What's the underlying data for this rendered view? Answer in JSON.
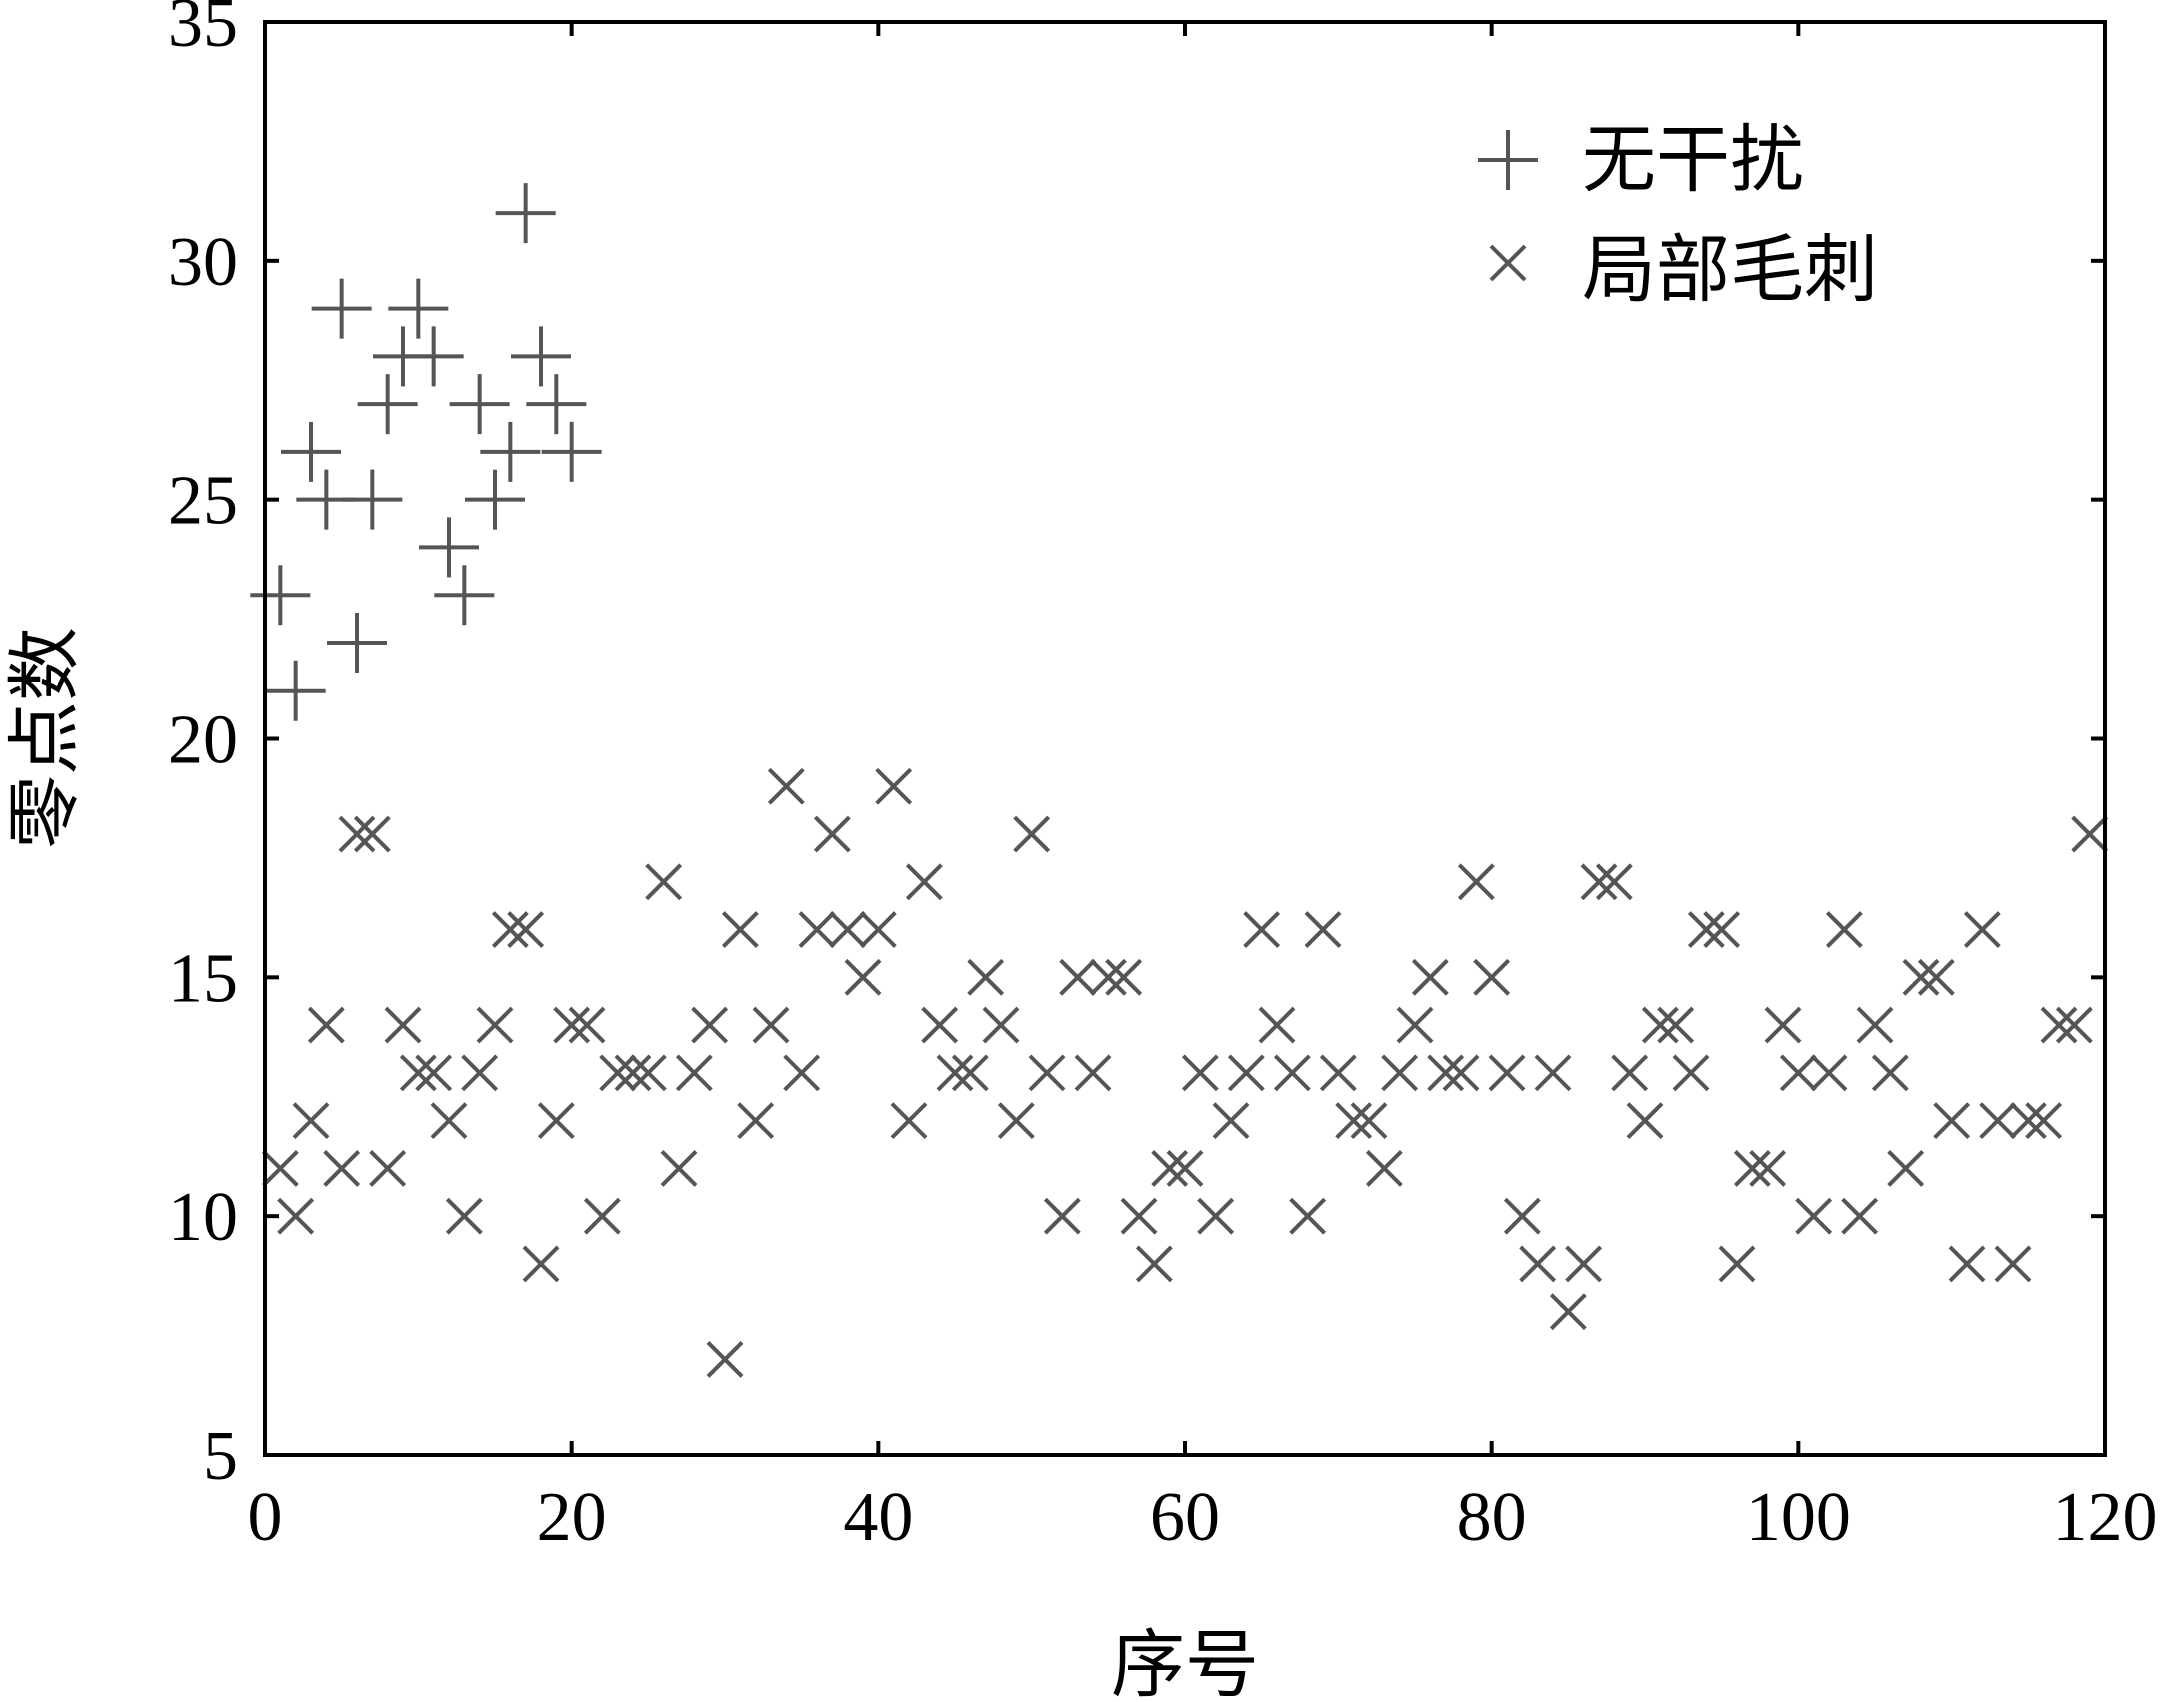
{
  "chart_data": {
    "type": "scatter",
    "title": "",
    "xlabel": "序号",
    "ylabel": "零点数",
    "xlim": [
      0,
      120
    ],
    "ylim": [
      5,
      35
    ],
    "xticks": [
      0,
      20,
      40,
      60,
      80,
      100,
      120
    ],
    "yticks": [
      5,
      10,
      15,
      20,
      25,
      30,
      35
    ],
    "grid": false,
    "legend_position": "top-right",
    "marker_color": "#555555",
    "series": [
      {
        "name": "无干扰",
        "marker": "plus",
        "x": [
          1,
          2,
          3,
          4,
          5,
          6,
          7,
          8,
          9,
          10,
          11,
          12,
          13,
          14,
          15,
          16,
          17,
          18,
          19,
          20
        ],
        "y": [
          23,
          21,
          26,
          25,
          29,
          22,
          25,
          27,
          28,
          29,
          28,
          24,
          23,
          27,
          25,
          26,
          31,
          28,
          27,
          26
        ]
      },
      {
        "name": "局部毛刺",
        "marker": "cross",
        "x": [
          1,
          2,
          3,
          4,
          5,
          6,
          7,
          8,
          9,
          10,
          11,
          12,
          13,
          14,
          15,
          16,
          17,
          18,
          19,
          20,
          21,
          22,
          23,
          24,
          25,
          26,
          27,
          28,
          29,
          30,
          31,
          32,
          33,
          34,
          35,
          36,
          37,
          38,
          39,
          40,
          41,
          42,
          43,
          44,
          45,
          46,
          47,
          48,
          49,
          50,
          51,
          52,
          53,
          54,
          55,
          56,
          57,
          58,
          59,
          60,
          61,
          62,
          63,
          64,
          65,
          66,
          67,
          68,
          69,
          70,
          71,
          72,
          73,
          74,
          75,
          76,
          77,
          78,
          79,
          80,
          81,
          82,
          83,
          84,
          85,
          86,
          87,
          88,
          89,
          90,
          91,
          92,
          93,
          94,
          95,
          96,
          97,
          98,
          99,
          100,
          101,
          102,
          103,
          104,
          105,
          106,
          107,
          108,
          109,
          110,
          111,
          112,
          113,
          114,
          115,
          116,
          117,
          118,
          119
        ],
        "y": [
          11,
          10,
          12,
          14,
          11,
          18,
          18,
          11,
          14,
          13,
          13,
          12,
          10,
          13,
          14,
          16,
          16,
          9,
          12,
          14,
          14,
          10,
          13,
          13,
          13,
          17,
          11,
          13,
          14,
          7,
          16,
          12,
          14,
          19,
          13,
          16,
          18,
          16,
          15,
          16,
          19,
          12,
          17,
          14,
          13,
          13,
          15,
          14,
          12,
          18,
          13,
          10,
          15,
          13,
          15,
          15,
          10,
          9,
          11,
          11,
          13,
          10,
          12,
          13,
          16,
          14,
          13,
          10,
          16,
          13,
          12,
          12,
          11,
          13,
          14,
          15,
          13,
          13,
          17,
          15,
          13,
          10,
          9,
          13,
          8,
          9,
          17,
          17,
          13,
          12,
          14,
          14,
          13,
          16,
          16,
          9,
          11,
          11,
          14,
          13,
          10,
          13,
          16,
          10,
          14,
          13,
          11,
          15,
          15,
          12,
          9,
          16,
          12,
          9,
          12,
          12,
          14,
          14,
          18
        ]
      }
    ]
  }
}
